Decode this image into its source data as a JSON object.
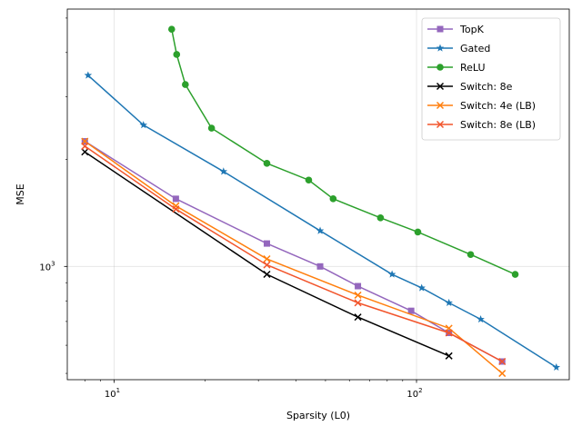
{
  "chart_data": {
    "type": "line",
    "xlabel": "Sparsity (L0)",
    "ylabel": "MSE",
    "xscale": "log",
    "yscale": "log",
    "xlim": [
      7,
      320
    ],
    "ylim": [
      480,
      5300
    ],
    "grid": true,
    "legend_position": "top-right",
    "x_ticks": [
      {
        "value": 10,
        "base": "10",
        "exp": "1"
      },
      {
        "value": 100,
        "base": "10",
        "exp": "2"
      }
    ],
    "y_ticks": [
      {
        "value": 1000,
        "base": "10",
        "exp": "3"
      }
    ],
    "series": [
      {
        "name": "TopK",
        "color": "#9467bd",
        "marker": "square",
        "x": [
          8,
          16,
          32,
          48,
          64,
          96,
          128,
          192
        ],
        "y": [
          2250,
          1550,
          1160,
          1000,
          880,
          750,
          650,
          540
        ]
      },
      {
        "name": "Gated",
        "color": "#1f77b4",
        "marker": "star",
        "x": [
          8.2,
          12.5,
          23,
          48,
          83,
          104,
          128,
          163,
          290
        ],
        "y": [
          3450,
          2500,
          1850,
          1260,
          950,
          870,
          790,
          710,
          520
        ]
      },
      {
        "name": "ReLU",
        "color": "#2ca02c",
        "marker": "circle",
        "x": [
          15.5,
          16.1,
          17.2,
          21,
          32,
          44,
          53,
          76,
          101,
          151,
          212
        ],
        "y": [
          4650,
          3950,
          3250,
          2450,
          1950,
          1750,
          1550,
          1370,
          1250,
          1080,
          950
        ]
      },
      {
        "name": "Switch: 8e",
        "color": "#000000",
        "marker": "x",
        "x": [
          8,
          32,
          64,
          128
        ],
        "y": [
          2100,
          950,
          720,
          560
        ]
      },
      {
        "name": "Switch: 4e (LB)",
        "color": "#ff7f0e",
        "marker": "x",
        "x": [
          8,
          16,
          32,
          64,
          128,
          192
        ],
        "y": [
          2250,
          1480,
          1050,
          830,
          670,
          500
        ]
      },
      {
        "name": "Switch: 8e (LB)",
        "color": "#f2552c",
        "marker": "x",
        "x": [
          8,
          16,
          32,
          64,
          128,
          192
        ],
        "y": [
          2180,
          1450,
          1010,
          790,
          650,
          540
        ]
      }
    ]
  }
}
